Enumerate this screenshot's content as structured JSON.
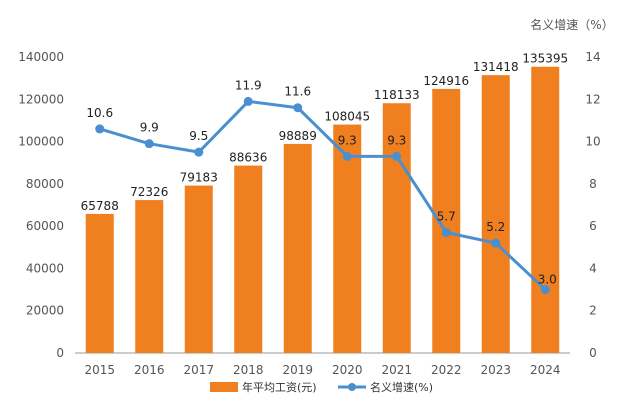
{
  "chart_data": {
    "type": "bar",
    "categories": [
      "2015",
      "2016",
      "2017",
      "2018",
      "2019",
      "2020",
      "2021",
      "2022",
      "2023",
      "2024"
    ],
    "series": [
      {
        "name": "年平均工资(元)",
        "type": "bar",
        "axis": "left",
        "color": "#F07F1F",
        "values": [
          65788,
          72326,
          79183,
          88636,
          98889,
          108045,
          118133,
          124916,
          131418,
          135395
        ]
      },
      {
        "name": "名义增速(%)",
        "type": "line",
        "axis": "right",
        "color": "#4A90D0",
        "values": [
          10.6,
          9.9,
          9.5,
          11.9,
          11.6,
          9.3,
          9.3,
          5.7,
          5.2,
          3.0
        ]
      }
    ],
    "y_left": {
      "min": 0,
      "max": 140000,
      "ticks": [
        0,
        20000,
        40000,
        60000,
        80000,
        100000,
        120000,
        140000
      ]
    },
    "y_right": {
      "min": 0,
      "max": 14,
      "ticks": [
        0,
        2,
        4,
        6,
        8,
        10,
        12,
        14
      ],
      "title": "名义增速（%）"
    },
    "data_labels_bar": [
      "65788",
      "72326",
      "79183",
      "88636",
      "98889",
      "108045",
      "118133",
      "124916",
      "131418",
      "135395"
    ],
    "data_labels_line": [
      "10.6",
      "9.9",
      "9.5",
      "11.9",
      "11.6",
      "9.3",
      "9.3",
      "5.7",
      "5.2",
      "3.0"
    ],
    "legend": {
      "position": "bottom",
      "items": [
        "年平均工资(元)",
        "名义增速(%)"
      ]
    },
    "grid": false
  }
}
